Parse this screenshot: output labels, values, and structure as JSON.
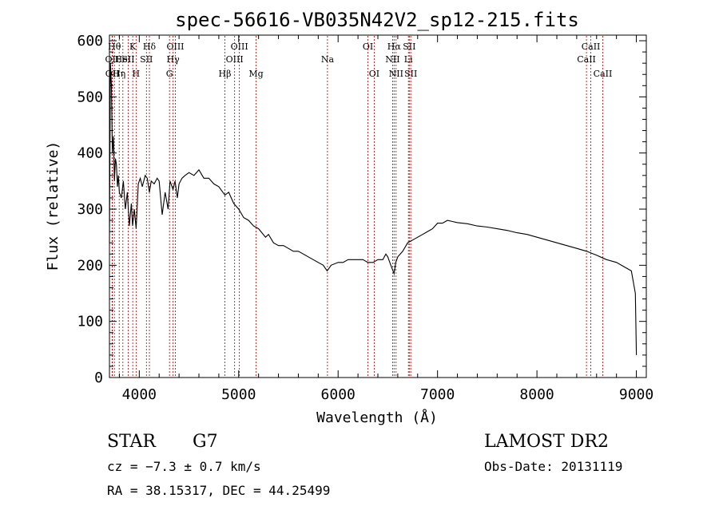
{
  "chart_data": {
    "type": "line",
    "title": "spec-56616-VB035N42V2_sp12-215.fits",
    "xlabel": "Wavelength (Å)",
    "ylabel": "Flux (relative)",
    "xlim": [
      3700,
      9100
    ],
    "ylim": [
      0,
      610
    ],
    "xticks": [
      4000,
      5000,
      6000,
      7000,
      8000,
      9000
    ],
    "yticks": [
      0,
      100,
      200,
      300,
      400,
      500,
      600
    ],
    "xtick_labels": [
      "4000",
      "5000",
      "6000",
      "7000",
      "8000",
      "9000"
    ],
    "ytick_labels": [
      "0",
      "100",
      "200",
      "300",
      "400",
      "500",
      "600"
    ],
    "grid": false,
    "line_color": "#000000",
    "marker_color": "#aa0000",
    "series": [
      {
        "x": [
          3700,
          3710,
          3720,
          3730,
          3740,
          3750,
          3760,
          3770,
          3780,
          3790,
          3800,
          3820,
          3840,
          3860,
          3880,
          3900,
          3920,
          3933,
          3950,
          3968,
          3990,
          4010,
          4030,
          4060,
          4080,
          4102,
          4120,
          4150,
          4180,
          4200,
          4230,
          4260,
          4290,
          4310,
          4340,
          4360,
          4383,
          4400,
          4430,
          4460,
          4500,
          4550,
          4600,
          4650,
          4700,
          4750,
          4800,
          4861,
          4900,
          4950,
          5000,
          5050,
          5100,
          5150,
          5200,
          5270,
          5300,
          5350,
          5400,
          5450,
          5500,
          5550,
          5600,
          5650,
          5700,
          5750,
          5800,
          5850,
          5890,
          5930,
          6000,
          6050,
          6100,
          6150,
          6200,
          6250,
          6300,
          6350,
          6400,
          6450,
          6480,
          6500,
          6530,
          6563,
          6580,
          6600,
          6650,
          6700,
          6750,
          6800,
          6850,
          6900,
          6950,
          7000,
          7050,
          7100,
          7150,
          7200,
          7300,
          7400,
          7500,
          7600,
          7700,
          7800,
          7900,
          8000,
          8100,
          8200,
          8300,
          8400,
          8500,
          8600,
          8700,
          8800,
          8900,
          8950,
          8990,
          9000
        ],
        "y": [
          240,
          560,
          520,
          400,
          430,
          350,
          390,
          380,
          340,
          360,
          330,
          320,
          350,
          300,
          330,
          270,
          310,
          270,
          300,
          265,
          345,
          355,
          340,
          360,
          355,
          330,
          350,
          345,
          355,
          350,
          290,
          330,
          300,
          350,
          335,
          350,
          320,
          345,
          355,
          360,
          365,
          360,
          370,
          355,
          355,
          345,
          340,
          325,
          330,
          310,
          300,
          285,
          280,
          270,
          265,
          250,
          255,
          240,
          235,
          235,
          230,
          225,
          225,
          220,
          215,
          210,
          205,
          200,
          190,
          200,
          205,
          205,
          210,
          210,
          210,
          210,
          205,
          205,
          210,
          210,
          220,
          215,
          200,
          185,
          205,
          215,
          225,
          240,
          245,
          250,
          255,
          260,
          265,
          275,
          275,
          280,
          278,
          276,
          274,
          270,
          268,
          265,
          262,
          258,
          255,
          250,
          245,
          240,
          235,
          230,
          225,
          218,
          210,
          205,
          195,
          190,
          150,
          40
        ]
      }
    ],
    "lines": [
      {
        "x": 3727,
        "label": "OII",
        "row": 2
      },
      {
        "x": 3729,
        "label": "OII",
        "row": 3
      },
      {
        "x": 3750,
        "label": "Hθ",
        "row": 1
      },
      {
        "x": 3798,
        "label": "Hη",
        "row": 3
      },
      {
        "x": 3835,
        "label": "HeI",
        "row": 2
      },
      {
        "x": 3889,
        "label": "SII",
        "row": 2
      },
      {
        "x": 3934,
        "label": "K",
        "row": 1
      },
      {
        "x": 3968,
        "label": "H",
        "row": 3
      },
      {
        "x": 4072,
        "label": "SII",
        "row": 2
      },
      {
        "x": 4102,
        "label": "Hδ",
        "row": 1
      },
      {
        "x": 4304,
        "label": "G",
        "row": 3
      },
      {
        "x": 4340,
        "label": "Hγ",
        "row": 2
      },
      {
        "x": 4363,
        "label": "OIII",
        "row": 1
      },
      {
        "x": 4861,
        "label": "Hβ",
        "row": 3
      },
      {
        "x": 4959,
        "label": "OIII",
        "row": 2
      },
      {
        "x": 5007,
        "label": "OIII",
        "row": 1
      },
      {
        "x": 5175,
        "label": "Mg",
        "row": 3
      },
      {
        "x": 5893,
        "label": "Na",
        "row": 2
      },
      {
        "x": 6300,
        "label": "OI",
        "row": 1
      },
      {
        "x": 6363,
        "label": "OI",
        "row": 3
      },
      {
        "x": 6548,
        "label": "NII",
        "row": 2
      },
      {
        "x": 6563,
        "label": "Hα",
        "row": 1
      },
      {
        "x": 6583,
        "label": "NII",
        "row": 3
      },
      {
        "x": 6707,
        "label": "Li",
        "row": 2
      },
      {
        "x": 6716,
        "label": "SII",
        "row": 1
      },
      {
        "x": 6731,
        "label": "SII",
        "row": 3
      },
      {
        "x": 8498,
        "label": "CaII",
        "row": 2
      },
      {
        "x": 8542,
        "label": "CaII",
        "row": 1
      },
      {
        "x": 8662,
        "label": "CaII",
        "row": 3
      }
    ]
  },
  "info": {
    "class": "STAR",
    "subclass": "G7",
    "cz": "cz = −7.3 ± 0.7 km/s",
    "radec": "RA =  38.15317, DEC =  44.25499",
    "survey": "LAMOST DR2",
    "obsdate": "Obs-Date: 20131119"
  }
}
